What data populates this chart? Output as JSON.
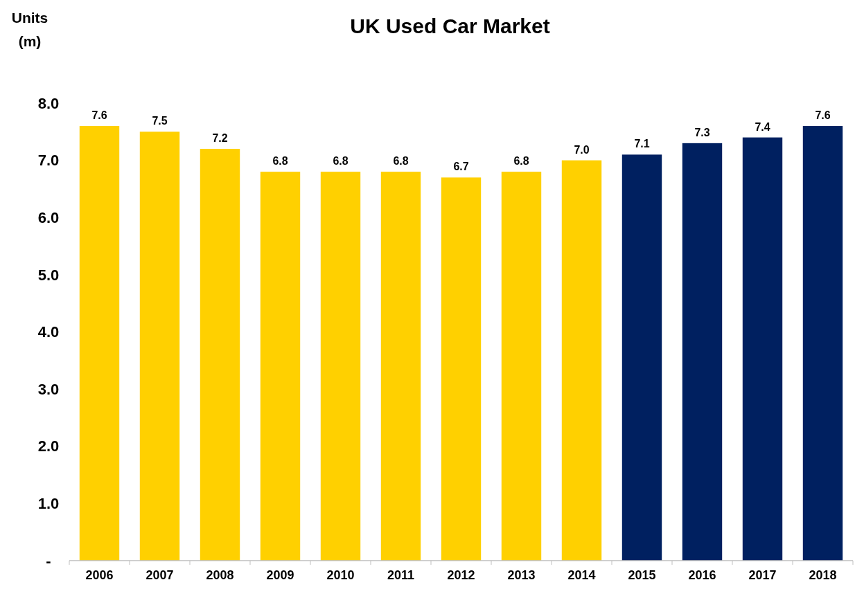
{
  "chart_data": {
    "type": "bar",
    "title": "UK Used Car Market",
    "ylabel": "Units (m)",
    "categories": [
      "2006",
      "2007",
      "2008",
      "2009",
      "2010",
      "2011",
      "2012",
      "2013",
      "2014",
      "2015",
      "2016",
      "2017",
      "2018"
    ],
    "values": [
      7.6,
      7.5,
      7.2,
      6.8,
      6.8,
      6.8,
      6.7,
      6.8,
      7.0,
      7.1,
      7.3,
      7.4,
      7.6
    ],
    "colors": [
      "#ffd000",
      "#ffd000",
      "#ffd000",
      "#ffd000",
      "#ffd000",
      "#ffd000",
      "#ffd000",
      "#ffd000",
      "#ffd000",
      "#002060",
      "#002060",
      "#002060",
      "#002060"
    ],
    "ylim": [
      0,
      8
    ],
    "yticks": [
      {
        "value": 0,
        "label": "-"
      },
      {
        "value": 1,
        "label": "1.0"
      },
      {
        "value": 2,
        "label": "2.0"
      },
      {
        "value": 3,
        "label": "3.0"
      },
      {
        "value": 4,
        "label": "4.0"
      },
      {
        "value": 5,
        "label": "5.0"
      },
      {
        "value": 6,
        "label": "6.0"
      },
      {
        "value": 7,
        "label": "7.0"
      },
      {
        "value": 8,
        "label": "8.0"
      }
    ],
    "value_labels": [
      "7.6",
      "7.5",
      "7.2",
      "6.8",
      "6.8",
      "6.8",
      "6.7",
      "6.8",
      "7.0",
      "7.1",
      "7.3",
      "7.4",
      "7.6"
    ]
  }
}
